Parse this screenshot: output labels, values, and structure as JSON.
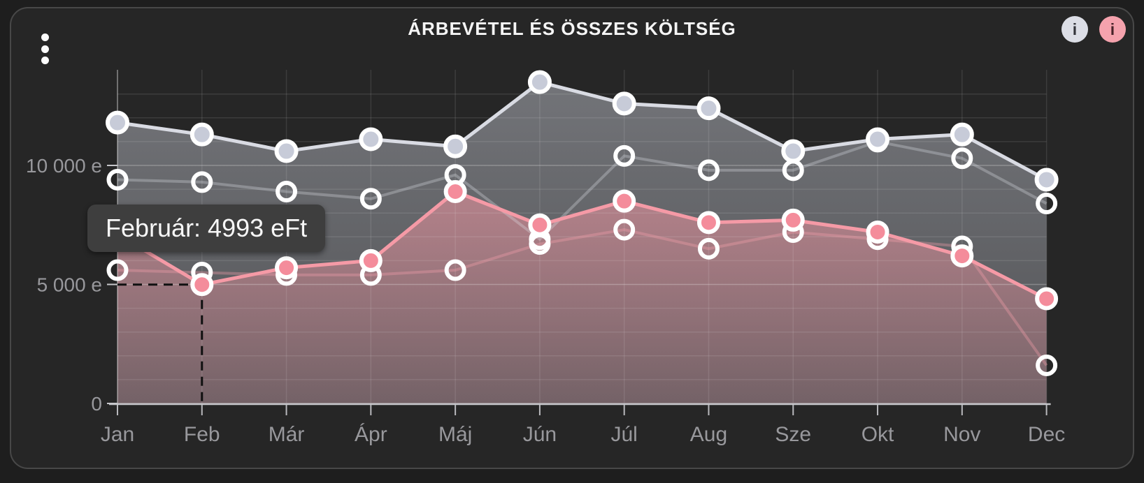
{
  "panel": {
    "title": "ÁRBEVÉTEL ÉS ÖSSZES KÖLTSÉG",
    "info_buttons": [
      {
        "glyph": "i",
        "bg": "#dcdee6",
        "fg": "#33343a"
      },
      {
        "glyph": "i",
        "bg": "#f5a2ad",
        "fg": "#472228"
      }
    ]
  },
  "tooltip": {
    "text": "Február: 4993 eFt",
    "month": "Február",
    "value": 4993,
    "unit": "eFt"
  },
  "chart_data": {
    "type": "line",
    "title": "ÁRBEVÉTEL ÉS ÖSSZES KÖLTSÉG",
    "categories": [
      "Jan",
      "Feb",
      "Már",
      "Ápr",
      "Máj",
      "Jún",
      "Júl",
      "Aug",
      "Sze",
      "Okt",
      "Nov",
      "Dec"
    ],
    "unit": "eFt",
    "ylim": [
      0,
      13500
    ],
    "grid": {
      "horizontal_step": 1000,
      "vertical": "per-month",
      "on": true
    },
    "legend": "none",
    "yticks": [
      {
        "value": 0,
        "label": "0"
      },
      {
        "value": 5000,
        "label": "5 000 e"
      },
      {
        "value": 10000,
        "label": "10 000 e"
      }
    ],
    "series": [
      {
        "id": "arbevetel",
        "style": "solid-gray",
        "area": true,
        "values": [
          11800,
          11300,
          10600,
          11100,
          10800,
          13500,
          12600,
          12400,
          10600,
          11100,
          11300,
          9400
        ]
      },
      {
        "id": "osszes-koltseg",
        "style": "solid-pink",
        "area": true,
        "values": [
          7100,
          4993,
          5700,
          6000,
          8900,
          7500,
          8500,
          7600,
          7700,
          7200,
          6200,
          4400
        ]
      },
      {
        "id": "arbevetel-elozo",
        "style": "hollow-gray",
        "area": false,
        "values": [
          9400,
          9300,
          8900,
          8600,
          9600,
          6900,
          10400,
          9800,
          9800,
          11000,
          10300,
          8400
        ]
      },
      {
        "id": "osszes-koltseg-elozo",
        "style": "hollow-pink",
        "area": false,
        "values": [
          5600,
          5500,
          5400,
          5400,
          5600,
          6700,
          7300,
          6500,
          7200,
          6900,
          6600,
          1600
        ]
      }
    ],
    "highlight": {
      "category_index": 1,
      "series": "osszes-koltseg",
      "value": 4993,
      "crosshair": "dashed"
    }
  },
  "colors": {
    "page_bg": "#1e1e1e",
    "panel_bg": "#262626",
    "panel_border": "#484848",
    "title": "#f5f5f5",
    "gray_line": "#d9dbe3",
    "gray_marker": "#c7cbd8",
    "gray_area_top": "rgba(205,208,218,0.46)",
    "gray_area_bottom": "rgba(180,183,193,0.32)",
    "pink_line": "#f59aa6",
    "pink_marker": "#f48c9b",
    "pink_area_top": "rgba(244,150,162,0.55)",
    "pink_area_bottom": "rgba(244,150,162,0.20)",
    "gray_faint_line": "rgba(225,227,235,0.30)",
    "pink_faint_line": "rgba(245,160,172,0.35)",
    "marker_ring": "#ffffff",
    "grid": "rgba(255,255,255,0.10)",
    "grid_major": "rgba(255,255,255,0.25)",
    "axis_line": "#c6c6ca",
    "tick": "#b9b9bd",
    "label": "#98989c",
    "dashed": "#101010",
    "tooltip_bg": "#3e3e3e",
    "tooltip_text": "#f7f7f7"
  }
}
